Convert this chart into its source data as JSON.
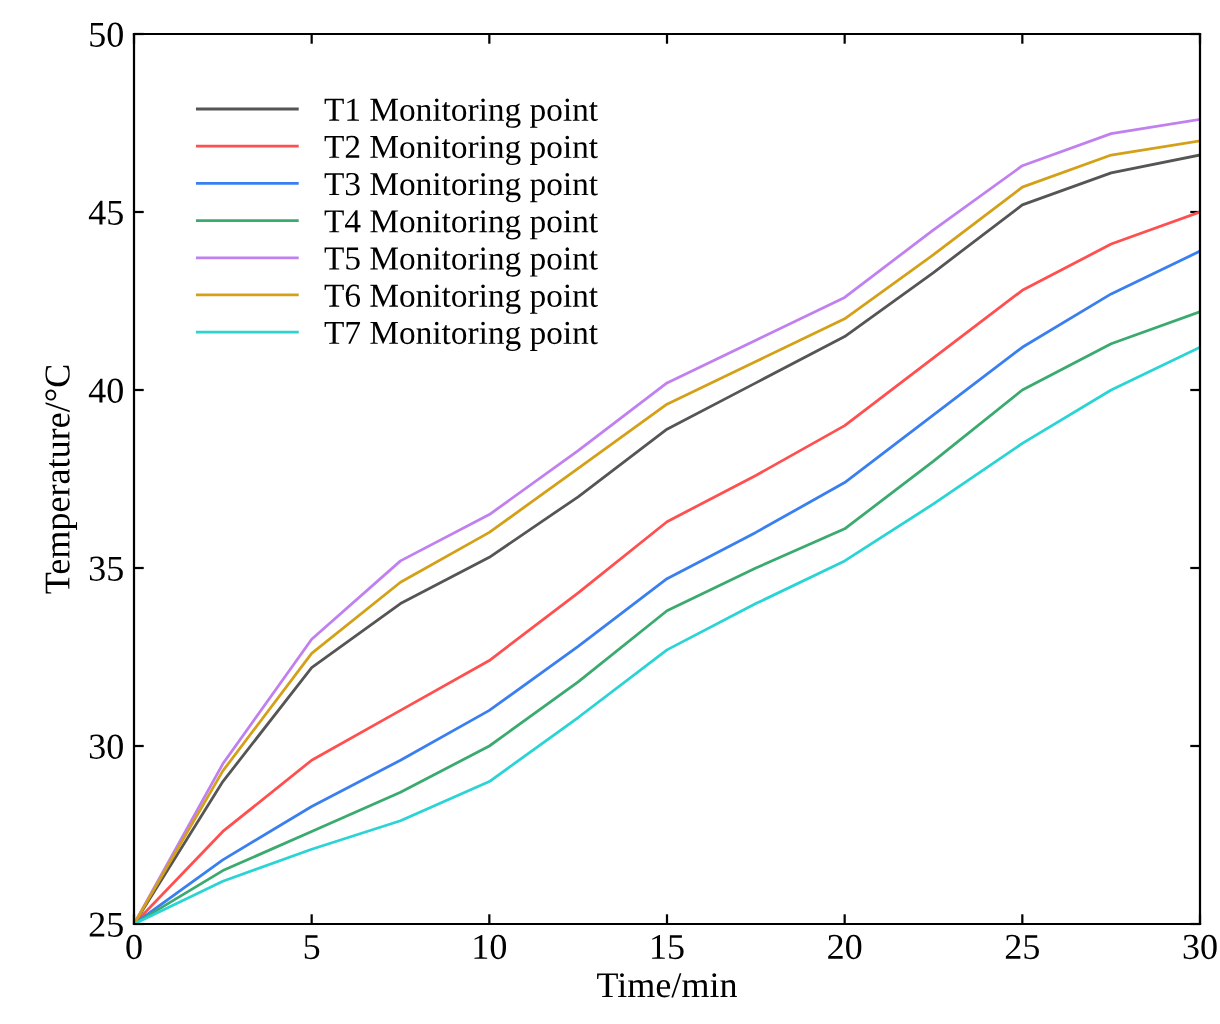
{
  "chart_data": {
    "type": "line",
    "xlabel": "Time/min",
    "ylabel": "Temperature/°C",
    "x": [
      0,
      2.5,
      5,
      7.5,
      10,
      12.5,
      15,
      17.5,
      20,
      22.5,
      25,
      27.5,
      30
    ],
    "series": [
      {
        "name": "T1 Monitoring point",
        "color": "#555555",
        "values": [
          25,
          29.0,
          32.2,
          34.0,
          35.3,
          37.0,
          38.9,
          40.2,
          41.5,
          43.3,
          45.2,
          46.1,
          46.6
        ]
      },
      {
        "name": "T2 Monitoring point",
        "color": "#ff5050",
        "values": [
          25,
          27.6,
          29.6,
          31.0,
          32.4,
          34.3,
          36.3,
          37.6,
          39.0,
          40.9,
          42.8,
          44.1,
          45.0
        ]
      },
      {
        "name": "T3 Monitoring point",
        "color": "#3a7ff0",
        "values": [
          25,
          26.8,
          28.3,
          29.6,
          31.0,
          32.8,
          34.7,
          36.0,
          37.4,
          39.3,
          41.2,
          42.7,
          43.9
        ]
      },
      {
        "name": "T4 Monitoring point",
        "color": "#3aaa6f",
        "values": [
          25,
          26.5,
          27.6,
          28.7,
          30.0,
          31.8,
          33.8,
          35.0,
          36.1,
          38.0,
          40.0,
          41.3,
          42.2
        ]
      },
      {
        "name": "T5 Monitoring point",
        "color": "#c080f0",
        "values": [
          25,
          29.5,
          33.0,
          35.2,
          36.5,
          38.3,
          40.2,
          41.4,
          42.6,
          44.5,
          46.3,
          47.2,
          47.6
        ]
      },
      {
        "name": "T6 Monitoring point",
        "color": "#d4a017",
        "values": [
          25,
          29.3,
          32.6,
          34.6,
          36.0,
          37.8,
          39.6,
          40.8,
          42.0,
          43.8,
          45.7,
          46.6,
          47.0
        ]
      },
      {
        "name": "T7 Monitoring point",
        "color": "#2ad4d4",
        "values": [
          25,
          26.2,
          27.1,
          27.9,
          29.0,
          30.8,
          32.7,
          34.0,
          35.2,
          36.8,
          38.5,
          40.0,
          41.2
        ]
      }
    ],
    "xlim": [
      0,
      30
    ],
    "xticks": [
      0,
      5,
      10,
      15,
      20,
      25,
      30
    ],
    "ylim": [
      25,
      50
    ],
    "yticks": [
      25,
      30,
      35,
      40,
      45,
      50
    ],
    "grid": false,
    "legend": "top left",
    "marker": "none",
    "line_style": "solid"
  }
}
